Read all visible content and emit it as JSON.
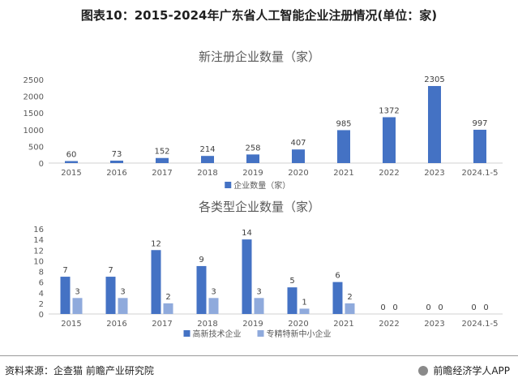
{
  "figure": {
    "title": "图表10：2015-2024年广东省人工智能企业注册情况(单位：家)",
    "source": "资料来源：企查猫 前瞻产业研究院",
    "brand": "前瞻经济学人APP"
  },
  "colors": {
    "dark_blue": "#4472C4",
    "light_blue": "#8FAADC"
  },
  "chart_data": [
    {
      "type": "bar",
      "title": "新注册企业数量（家）",
      "categories": [
        "2015",
        "2016",
        "2017",
        "2018",
        "2019",
        "2020",
        "2021",
        "2022",
        "2023",
        "2024.1-5"
      ],
      "series": [
        {
          "name": "企业数量（家）",
          "values": [
            60,
            73,
            152,
            214,
            258,
            407,
            985,
            1372,
            2305,
            997
          ]
        }
      ],
      "ylim": [
        0,
        2500
      ],
      "yticks": [
        0,
        500,
        1000,
        1500,
        2000,
        2500
      ],
      "grid": false,
      "legend": "bottom"
    },
    {
      "type": "bar",
      "title": "各类型企业数量（家）",
      "categories": [
        "2015",
        "2016",
        "2017",
        "2018",
        "2019",
        "2020",
        "2021",
        "2022",
        "2023",
        "2024.1-5"
      ],
      "series": [
        {
          "name": "高新技术企业",
          "values": [
            7,
            7,
            12,
            9,
            14,
            5,
            6,
            0,
            0,
            0
          ]
        },
        {
          "name": "专精特新中小企业",
          "values": [
            3,
            3,
            2,
            3,
            3,
            1,
            2,
            0,
            0,
            0
          ]
        }
      ],
      "ylim": [
        0,
        16
      ],
      "yticks": [
        0,
        2,
        4,
        6,
        8,
        10,
        12,
        14,
        16
      ],
      "grid": false,
      "legend": "bottom"
    }
  ]
}
